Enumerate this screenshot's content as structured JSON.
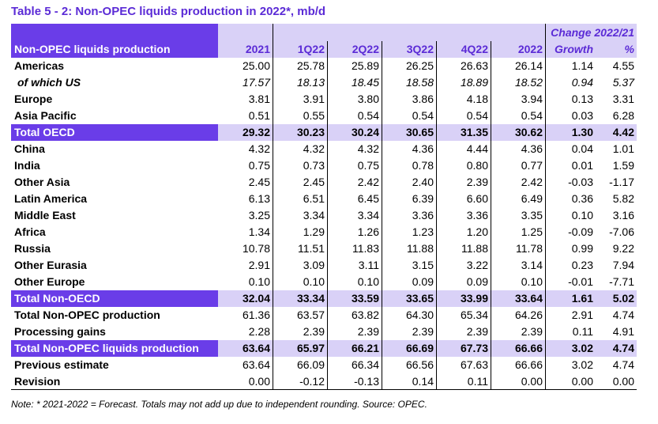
{
  "title": "Table 5 - 2: Non-OPEC liquids production in 2022*, mb/d",
  "header": {
    "change_label": "Change 2022/21",
    "row_label": "Non-OPEC liquids production",
    "columns": [
      "2021",
      "1Q22",
      "2Q22",
      "3Q22",
      "4Q22",
      "2022"
    ],
    "growth_label": "Growth",
    "pct_label": "%"
  },
  "rows": [
    {
      "label": "Americas",
      "values": [
        "25.00",
        "25.78",
        "25.89",
        "26.25",
        "26.63",
        "26.14"
      ],
      "growth": "1.14",
      "pct": "4.55",
      "style": ""
    },
    {
      "label": "of which US",
      "values": [
        "17.57",
        "18.13",
        "18.45",
        "18.58",
        "18.89",
        "18.52"
      ],
      "growth": "0.94",
      "pct": "5.37",
      "style": "italic"
    },
    {
      "label": "Europe",
      "values": [
        "3.81",
        "3.91",
        "3.80",
        "3.86",
        "4.18",
        "3.94"
      ],
      "growth": "0.13",
      "pct": "3.31",
      "style": ""
    },
    {
      "label": "Asia Pacific",
      "values": [
        "0.51",
        "0.55",
        "0.54",
        "0.54",
        "0.54",
        "0.54"
      ],
      "growth": "0.03",
      "pct": "6.28",
      "style": ""
    },
    {
      "label": "Total OECD",
      "values": [
        "29.32",
        "30.23",
        "30.24",
        "30.65",
        "31.35",
        "30.62"
      ],
      "growth": "1.30",
      "pct": "4.42",
      "style": "total"
    },
    {
      "label": "China",
      "values": [
        "4.32",
        "4.32",
        "4.32",
        "4.36",
        "4.44",
        "4.36"
      ],
      "growth": "0.04",
      "pct": "1.01",
      "style": ""
    },
    {
      "label": "India",
      "values": [
        "0.75",
        "0.73",
        "0.75",
        "0.78",
        "0.80",
        "0.77"
      ],
      "growth": "0.01",
      "pct": "1.59",
      "style": ""
    },
    {
      "label": "Other Asia",
      "values": [
        "2.45",
        "2.45",
        "2.42",
        "2.40",
        "2.39",
        "2.42"
      ],
      "growth": "-0.03",
      "pct": "-1.17",
      "style": ""
    },
    {
      "label": "Latin America",
      "values": [
        "6.13",
        "6.51",
        "6.45",
        "6.39",
        "6.60",
        "6.49"
      ],
      "growth": "0.36",
      "pct": "5.82",
      "style": ""
    },
    {
      "label": "Middle East",
      "values": [
        "3.25",
        "3.34",
        "3.34",
        "3.36",
        "3.36",
        "3.35"
      ],
      "growth": "0.10",
      "pct": "3.16",
      "style": ""
    },
    {
      "label": "Africa",
      "values": [
        "1.34",
        "1.29",
        "1.26",
        "1.23",
        "1.20",
        "1.25"
      ],
      "growth": "-0.09",
      "pct": "-7.06",
      "style": ""
    },
    {
      "label": "Russia",
      "values": [
        "10.78",
        "11.51",
        "11.83",
        "11.88",
        "11.88",
        "11.78"
      ],
      "growth": "0.99",
      "pct": "9.22",
      "style": ""
    },
    {
      "label": "Other Eurasia",
      "values": [
        "2.91",
        "3.09",
        "3.11",
        "3.15",
        "3.22",
        "3.14"
      ],
      "growth": "0.23",
      "pct": "7.94",
      "style": ""
    },
    {
      "label": "Other Europe",
      "values": [
        "0.10",
        "0.10",
        "0.10",
        "0.09",
        "0.09",
        "0.10"
      ],
      "growth": "-0.01",
      "pct": "-7.71",
      "style": ""
    },
    {
      "label": "Total Non-OECD",
      "values": [
        "32.04",
        "33.34",
        "33.59",
        "33.65",
        "33.99",
        "33.64"
      ],
      "growth": "1.61",
      "pct": "5.02",
      "style": "total"
    },
    {
      "label": "Total Non-OPEC production",
      "values": [
        "61.36",
        "63.57",
        "63.82",
        "64.30",
        "65.34",
        "64.26"
      ],
      "growth": "2.91",
      "pct": "4.74",
      "style": ""
    },
    {
      "label": "Processing gains",
      "values": [
        "2.28",
        "2.39",
        "2.39",
        "2.39",
        "2.39",
        "2.39"
      ],
      "growth": "0.11",
      "pct": "4.91",
      "style": ""
    },
    {
      "label": "Total Non-OPEC liquids production",
      "values": [
        "63.64",
        "65.97",
        "66.21",
        "66.69",
        "67.73",
        "66.66"
      ],
      "growth": "3.02",
      "pct": "4.74",
      "style": "total"
    },
    {
      "label": "Previous estimate",
      "values": [
        "63.64",
        "66.09",
        "66.34",
        "66.56",
        "67.63",
        "66.66"
      ],
      "growth": "3.02",
      "pct": "4.74",
      "style": ""
    },
    {
      "label": "Revision",
      "values": [
        "0.00",
        "-0.12",
        "-0.13",
        "0.14",
        "0.11",
        "0.00"
      ],
      "growth": "0.00",
      "pct": "0.00",
      "style": "bline"
    }
  ],
  "note": "Note: * 2021-2022 = Forecast. Totals may not add up due to independent rounding. Source: OPEC.",
  "colors": {
    "accent": "#6a3de8",
    "light": "#d9d1f7",
    "title": "#5b2bd6"
  }
}
